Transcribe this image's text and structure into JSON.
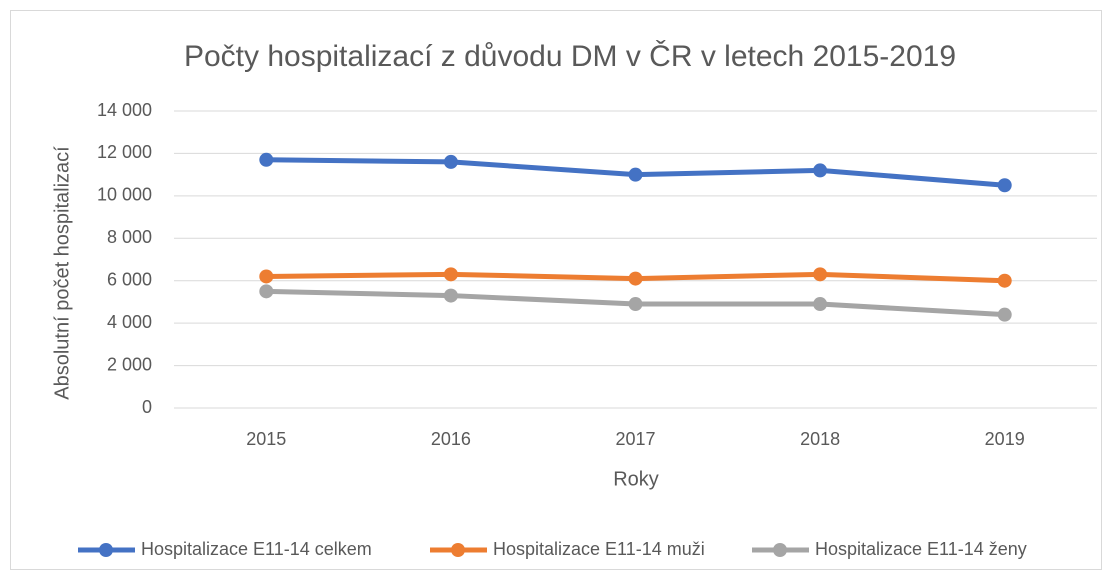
{
  "chart_data": {
    "type": "line",
    "title": "Počty hospitalizací z důvodu DM v ČR v letech 2015-2019",
    "x_label": "Roky",
    "y_label": "Absolutní počet hospitalizací",
    "categories": [
      "2015",
      "2016",
      "2017",
      "2018",
      "2019"
    ],
    "series": [
      {
        "name": "Hospitalizace E11-14 celkem",
        "color": "#4472c4",
        "values": [
          11700,
          11600,
          11000,
          11200,
          10500
        ]
      },
      {
        "name": "Hospitalizace E11-14 muži",
        "color": "#ed7d31",
        "values": [
          6200,
          6300,
          6100,
          6300,
          6000
        ]
      },
      {
        "name": "Hospitalizace E11-14 ženy",
        "color": "#a5a5a5",
        "values": [
          5500,
          5300,
          4900,
          4900,
          4400
        ]
      }
    ],
    "ylim": [
      0,
      14000
    ],
    "yticks": [
      0,
      {
        "value": 2000,
        "label": "2 000"
      },
      {
        "value": 4000,
        "label": "4 000"
      },
      {
        "value": 6000,
        "label": "6 000"
      },
      {
        "value": 8000,
        "label": "8 000"
      },
      {
        "value": 10000,
        "label": "10 000"
      },
      {
        "value": 12000,
        "label": "12 000"
      },
      {
        "value": 14000,
        "label": "14 000"
      }
    ],
    "grid": true,
    "legend": "bottom"
  }
}
